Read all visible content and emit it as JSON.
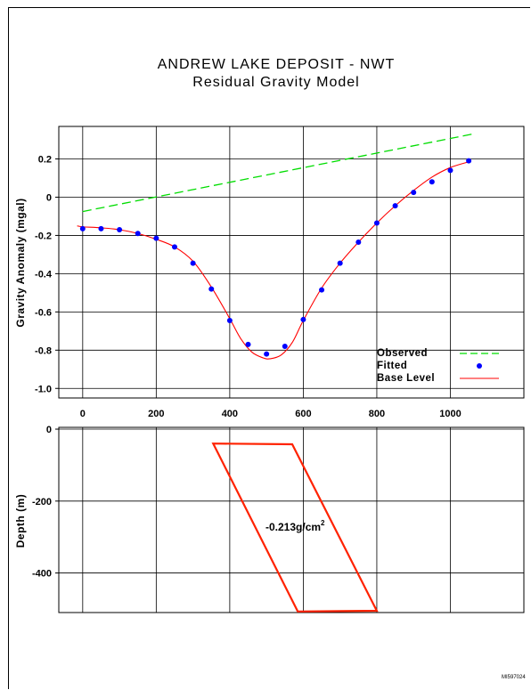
{
  "title": "ANDREW LAKE DEPOSIT - NWT",
  "subtitle": "Residual Gravity Model",
  "figure_code": "MI597024",
  "colors": {
    "observed": "#00dd00",
    "fitted": "#0000ff",
    "base_level": "#ff0000",
    "body_outline": "#ff2200",
    "axes": "#000000",
    "grid": "#000000"
  },
  "chart_data": [
    {
      "type": "scatter",
      "ylabel": "Gravity Anomaly (mgal)",
      "xlim": [
        -65,
        1200
      ],
      "ylim": [
        -1.05,
        0.37
      ],
      "x_ticks": [
        0,
        200,
        400,
        600,
        800,
        1000
      ],
      "y_ticks": [
        0.2,
        0,
        -0.2,
        -0.4,
        -0.6,
        -0.8,
        -1.0
      ],
      "x_tick_labels": [
        "0",
        "200",
        "400",
        "600",
        "800",
        "1000"
      ],
      "y_tick_labels": [
        "0.2",
        "0",
        "-0.2",
        "-0.4",
        "-0.6",
        "-0.8",
        "-1.0"
      ],
      "grid": true,
      "legend_position": "bottom-right",
      "series": [
        {
          "name": "Observed",
          "style": "dashed-line",
          "x": [
            0,
            1060
          ],
          "y": [
            -0.075,
            0.33
          ]
        },
        {
          "name": "Fitted",
          "style": "points",
          "x": [
            0,
            50,
            100,
            150,
            200,
            250,
            300,
            350,
            400,
            450,
            500,
            550,
            600,
            650,
            700,
            750,
            800,
            850,
            900,
            950,
            1000,
            1050
          ],
          "y": [
            -0.165,
            -0.165,
            -0.17,
            -0.19,
            -0.215,
            -0.26,
            -0.345,
            -0.48,
            -0.645,
            -0.77,
            -0.82,
            -0.78,
            -0.64,
            -0.485,
            -0.345,
            -0.235,
            -0.135,
            -0.045,
            0.025,
            0.08,
            0.14,
            0.19
          ]
        },
        {
          "name": "Base Level",
          "style": "solid-line",
          "x": [
            -15,
            0,
            50,
            100,
            150,
            200,
            250,
            300,
            350,
            400,
            430,
            460,
            490,
            510,
            540,
            570,
            600,
            650,
            700,
            750,
            800,
            850,
            900,
            950,
            1000,
            1050
          ],
          "y": [
            -0.15,
            -0.155,
            -0.16,
            -0.17,
            -0.19,
            -0.22,
            -0.26,
            -0.335,
            -0.47,
            -0.635,
            -0.74,
            -0.81,
            -0.84,
            -0.845,
            -0.825,
            -0.76,
            -0.645,
            -0.475,
            -0.345,
            -0.235,
            -0.135,
            -0.045,
            0.035,
            0.105,
            0.155,
            0.185
          ]
        }
      ]
    },
    {
      "type": "diagram",
      "ylabel": "Depth (m)",
      "xlim": [
        -65,
        1200
      ],
      "ylim": [
        -510,
        5
      ],
      "x_ticks": [
        0,
        200,
        400,
        600,
        800,
        1000
      ],
      "y_ticks": [
        0,
        -200,
        -400
      ],
      "y_tick_labels": [
        "0",
        "-200",
        "-400"
      ],
      "grid": true,
      "body": {
        "density_label": "-0.213g/cm",
        "density_superscript": "2",
        "polygon": [
          {
            "x": 355,
            "y": -40
          },
          {
            "x": 570,
            "y": -42
          },
          {
            "x": 800,
            "y": -505
          },
          {
            "x": 585,
            "y": -507
          }
        ]
      }
    }
  ]
}
